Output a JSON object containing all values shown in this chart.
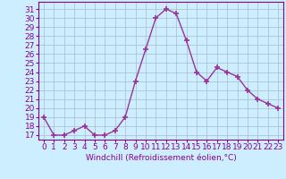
{
  "x": [
    0,
    1,
    2,
    3,
    4,
    5,
    6,
    7,
    8,
    9,
    10,
    11,
    12,
    13,
    14,
    15,
    16,
    17,
    18,
    19,
    20,
    21,
    22,
    23
  ],
  "y": [
    19,
    17,
    17,
    17.5,
    18,
    17,
    17,
    17.5,
    19,
    23,
    26.5,
    30,
    31,
    30.5,
    27.5,
    24,
    23,
    24.5,
    24,
    23.5,
    22,
    21,
    20.5,
    20
  ],
  "line_color": "#993399",
  "marker": "+",
  "marker_size": 4,
  "bg_color": "#cceeff",
  "grid_color": "#aabbcc",
  "xlabel": "Windchill (Refroidissement éolien,°C)",
  "xlabel_color": "#880088",
  "ylabel_ticks": [
    17,
    18,
    19,
    20,
    21,
    22,
    23,
    24,
    25,
    26,
    27,
    28,
    29,
    30,
    31
  ],
  "ylim": [
    16.5,
    31.8
  ],
  "xlim": [
    -0.5,
    23.5
  ],
  "tick_color": "#880088",
  "axis_color": "#880088",
  "font_size": 6.5
}
